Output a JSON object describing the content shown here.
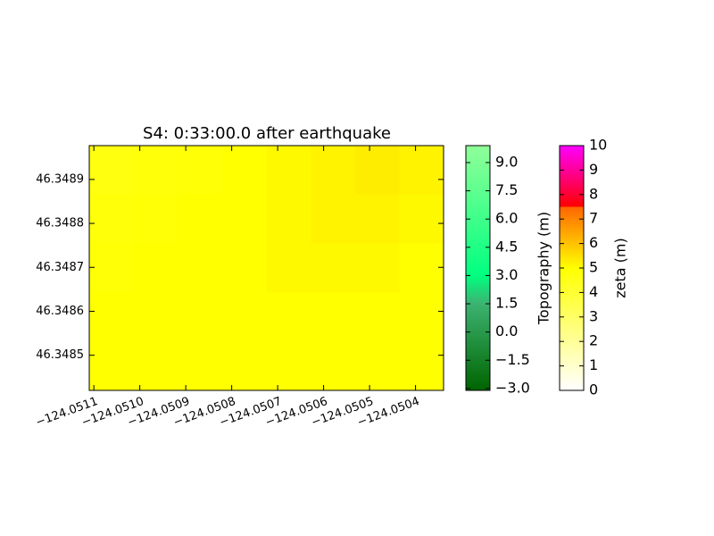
{
  "chart_data": {
    "type": "heatmap",
    "title": "S4: 0:33:00.0 after earthquake",
    "xlim": [
      -124.05111,
      -124.050339
    ],
    "ylim": [
      46.34842,
      46.348977
    ],
    "xticks": [
      {
        "value": -124.0511,
        "label": "−124.0511"
      },
      {
        "value": -124.051,
        "label": "−124.0510"
      },
      {
        "value": -124.0509,
        "label": "−124.0509"
      },
      {
        "value": -124.0508,
        "label": "−124.0508"
      },
      {
        "value": -124.0507,
        "label": "−124.0507"
      },
      {
        "value": -124.0506,
        "label": "−124.0506"
      },
      {
        "value": -124.0505,
        "label": "−124.0505"
      },
      {
        "value": -124.0504,
        "label": "−124.0504"
      }
    ],
    "yticks": [
      {
        "value": 46.3489,
        "label": "46.3489"
      },
      {
        "value": 46.3488,
        "label": "46.3488"
      },
      {
        "value": 46.3487,
        "label": "46.3487"
      },
      {
        "value": 46.3486,
        "label": "46.3486"
      },
      {
        "value": 46.3485,
        "label": "46.3485"
      }
    ],
    "z": [
      [
        4.7,
        4.8,
        4.9,
        5.0,
        5.1,
        5.2,
        5.3,
        5.2
      ],
      [
        4.8,
        4.9,
        5.0,
        5.0,
        5.1,
        5.2,
        5.2,
        5.1
      ],
      [
        4.9,
        5.0,
        5.0,
        5.0,
        5.1,
        5.1,
        5.1,
        5.0
      ],
      [
        5.0,
        5.0,
        5.0,
        5.0,
        5.0,
        5.0,
        5.0,
        5.0
      ],
      [
        5.0,
        5.0,
        5.0,
        5.0,
        5.0,
        5.0,
        5.0,
        5.0
      ]
    ],
    "colorbars": [
      {
        "label": "Topography (m)",
        "lim": [
          -3.1,
          9.9
        ],
        "ticks": [
          {
            "value": 9,
            "label": "9.0"
          },
          {
            "value": 7.5,
            "label": "7.5"
          },
          {
            "value": 6,
            "label": "6.0"
          },
          {
            "value": 4.5,
            "label": "4.5"
          },
          {
            "value": 3,
            "label": "3.0"
          },
          {
            "value": 1.5,
            "label": "1.5"
          },
          {
            "value": 0,
            "label": "0.0"
          },
          {
            "value": -1.5,
            "label": "−1.5"
          },
          {
            "value": -3,
            "label": "−3.0"
          }
        ],
        "stops": [
          {
            "value": -3.1,
            "color": "#006400"
          },
          {
            "value": 1.5,
            "color": "#3cb371"
          },
          {
            "value": 3,
            "color": "#00ff80"
          },
          {
            "value": 9.9,
            "color": "#90ff98"
          }
        ]
      },
      {
        "label": "zeta (m)",
        "lim": [
          0,
          10
        ],
        "ticks": [
          0,
          1,
          2,
          3,
          4,
          5,
          6,
          7,
          8,
          9,
          10
        ],
        "stops": [
          {
            "value": 0,
            "color": "#ffffff"
          },
          {
            "value": 5,
            "color": "#ffff00"
          },
          {
            "value": 7.5,
            "color": "#ff6600"
          },
          {
            "value": 7.5,
            "color": "#ff0000"
          },
          {
            "value": 10,
            "color": "#ff00ff"
          }
        ]
      }
    ]
  }
}
